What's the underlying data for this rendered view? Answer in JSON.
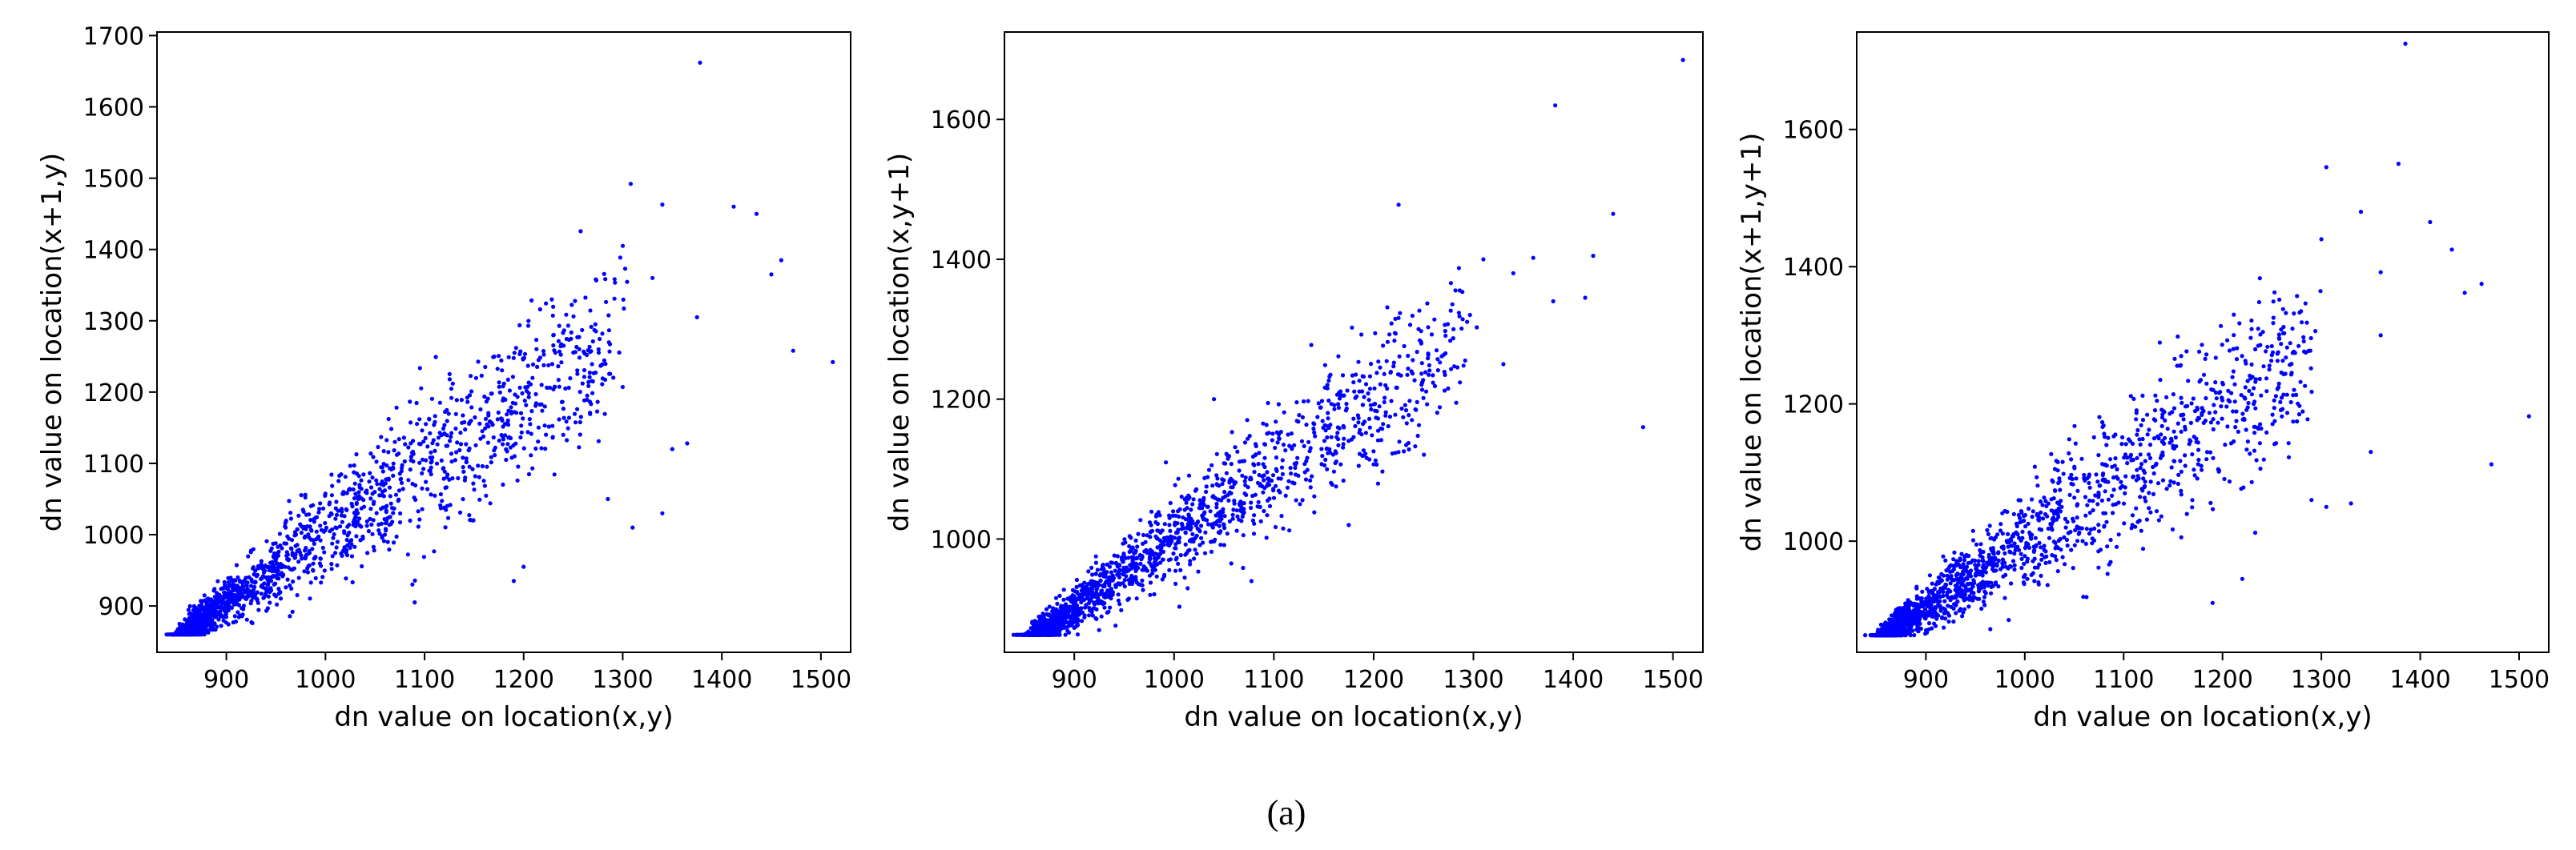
{
  "caption": "(a)",
  "chart_data": [
    {
      "type": "scatter",
      "xlabel": "dn value on location(x,y)",
      "ylabel": "dn value on location(x+1,y)",
      "xlim": [
        830,
        1530
      ],
      "ylim": [
        835,
        1705
      ],
      "xticks": [
        900,
        1000,
        1100,
        1200,
        1300,
        1400,
        1500
      ],
      "yticks": [
        900,
        1000,
        1100,
        1200,
        1300,
        1400,
        1500,
        1600,
        1700
      ],
      "color": "#0000ff",
      "grid": false,
      "cloud": {
        "x_min": 860,
        "x_max": 1290,
        "y_intercept": 37,
        "slope": 0.965,
        "spread": 50,
        "count": 1700
      },
      "points": [
        [
          1378,
          1662
        ],
        [
          1308,
          1492
        ],
        [
          1340,
          1463
        ],
        [
          1412,
          1460
        ],
        [
          1435,
          1450
        ],
        [
          1460,
          1385
        ],
        [
          1472,
          1258
        ],
        [
          1512,
          1242
        ],
        [
          1450,
          1365
        ],
        [
          1330,
          1360
        ],
        [
          1375,
          1305
        ],
        [
          1300,
          1405
        ],
        [
          1350,
          1120
        ],
        [
          1340,
          1030
        ],
        [
          1310,
          1010
        ],
        [
          1365,
          1128
        ],
        [
          1200,
          955
        ],
        [
          1190,
          935
        ],
        [
          1090,
          905
        ],
        [
          1240,
          1140
        ],
        [
          1285,
          1050
        ]
      ]
    },
    {
      "type": "scatter",
      "xlabel": "dn value on location(x,y)",
      "ylabel": "dn value on location(x,y+1)",
      "xlim": [
        830,
        1530
      ],
      "ylim": [
        838,
        1725
      ],
      "xticks": [
        900,
        1000,
        1100,
        1200,
        1300,
        1400,
        1500
      ],
      "yticks": [
        1000,
        1200,
        1400,
        1600
      ],
      "color": "#0000ff",
      "grid": false,
      "cloud": {
        "x_min": 860,
        "x_max": 1290,
        "y_intercept": 5,
        "slope": 0.995,
        "spread": 45,
        "count": 1700
      },
      "points": [
        [
          1510,
          1685
        ],
        [
          1382,
          1620
        ],
        [
          1440,
          1465
        ],
        [
          1310,
          1400
        ],
        [
          1360,
          1402
        ],
        [
          1420,
          1405
        ],
        [
          1470,
          1160
        ],
        [
          1340,
          1380
        ],
        [
          1380,
          1340
        ],
        [
          1412,
          1345
        ],
        [
          1225,
          1478
        ],
        [
          1175,
          1020
        ],
        [
          1090,
          1040
        ],
        [
          1040,
          1200
        ],
        [
          1280,
          1300
        ],
        [
          1330,
          1250
        ]
      ]
    },
    {
      "type": "scatter",
      "xlabel": "dn value on location(x,y)",
      "ylabel": "dn value on location(x+1,y+1)",
      "xlim": [
        830,
        1530
      ],
      "ylim": [
        838,
        1742
      ],
      "xticks": [
        900,
        1000,
        1100,
        1200,
        1300,
        1400,
        1500
      ],
      "yticks": [
        1000,
        1200,
        1400,
        1600
      ],
      "color": "#0000ff",
      "grid": false,
      "cloud": {
        "x_min": 860,
        "x_max": 1290,
        "y_intercept": 30,
        "slope": 0.97,
        "spread": 58,
        "count": 1700
      },
      "points": [
        [
          1385,
          1725
        ],
        [
          1378,
          1550
        ],
        [
          1305,
          1545
        ],
        [
          1410,
          1465
        ],
        [
          1432,
          1425
        ],
        [
          1462,
          1375
        ],
        [
          1472,
          1112
        ],
        [
          1510,
          1182
        ],
        [
          1445,
          1362
        ],
        [
          1340,
          1480
        ],
        [
          1360,
          1392
        ],
        [
          1330,
          1055
        ],
        [
          1305,
          1050
        ],
        [
          1350,
          1130
        ],
        [
          1190,
          910
        ],
        [
          1220,
          945
        ],
        [
          1290,
          1060
        ],
        [
          1360,
          1300
        ],
        [
          1300,
          1440
        ]
      ]
    }
  ]
}
